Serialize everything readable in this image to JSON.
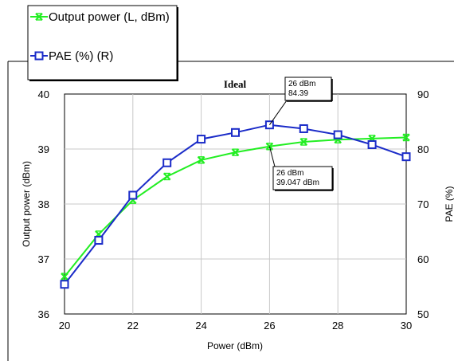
{
  "chart_data": {
    "type": "line",
    "title": "Ideal",
    "xlabel": "Power (dBm)",
    "ylabel_left": "Output power (dBm)",
    "ylabel_right": "PAE (%)",
    "xlim": [
      20,
      30
    ],
    "ylim_left": [
      36,
      40
    ],
    "ylim_right": [
      50,
      90
    ],
    "x_ticks": [
      "20",
      "22",
      "24",
      "26",
      "28",
      "30"
    ],
    "y_ticks_left": [
      "36",
      "37",
      "38",
      "39",
      "40"
    ],
    "y_ticks_right": [
      "50",
      "60",
      "70",
      "80",
      "90"
    ],
    "grid": true,
    "legend_position": "top-left",
    "x": [
      20,
      21,
      22,
      23,
      24,
      25,
      26,
      27,
      28,
      29,
      30
    ],
    "series": [
      {
        "name": "Output power (L, dBm)",
        "axis": "left",
        "color": "#22ee22",
        "marker": "x",
        "values": [
          36.68,
          37.45,
          38.07,
          38.5,
          38.8,
          38.94,
          39.047,
          39.13,
          39.17,
          39.19,
          39.21
        ]
      },
      {
        "name": "PAE (%) (R)",
        "axis": "right",
        "color": "#1a2bc8",
        "marker": "square",
        "values": [
          55.4,
          63.4,
          71.6,
          77.5,
          81.8,
          83.0,
          84.39,
          83.7,
          82.6,
          80.8,
          78.6
        ]
      }
    ],
    "annotations": [
      {
        "series": 1,
        "x": 26,
        "lines": [
          "26 dBm",
          "84.39"
        ]
      },
      {
        "series": 0,
        "x": 26,
        "lines": [
          "26 dBm",
          "39.047 dBm"
        ]
      }
    ]
  }
}
